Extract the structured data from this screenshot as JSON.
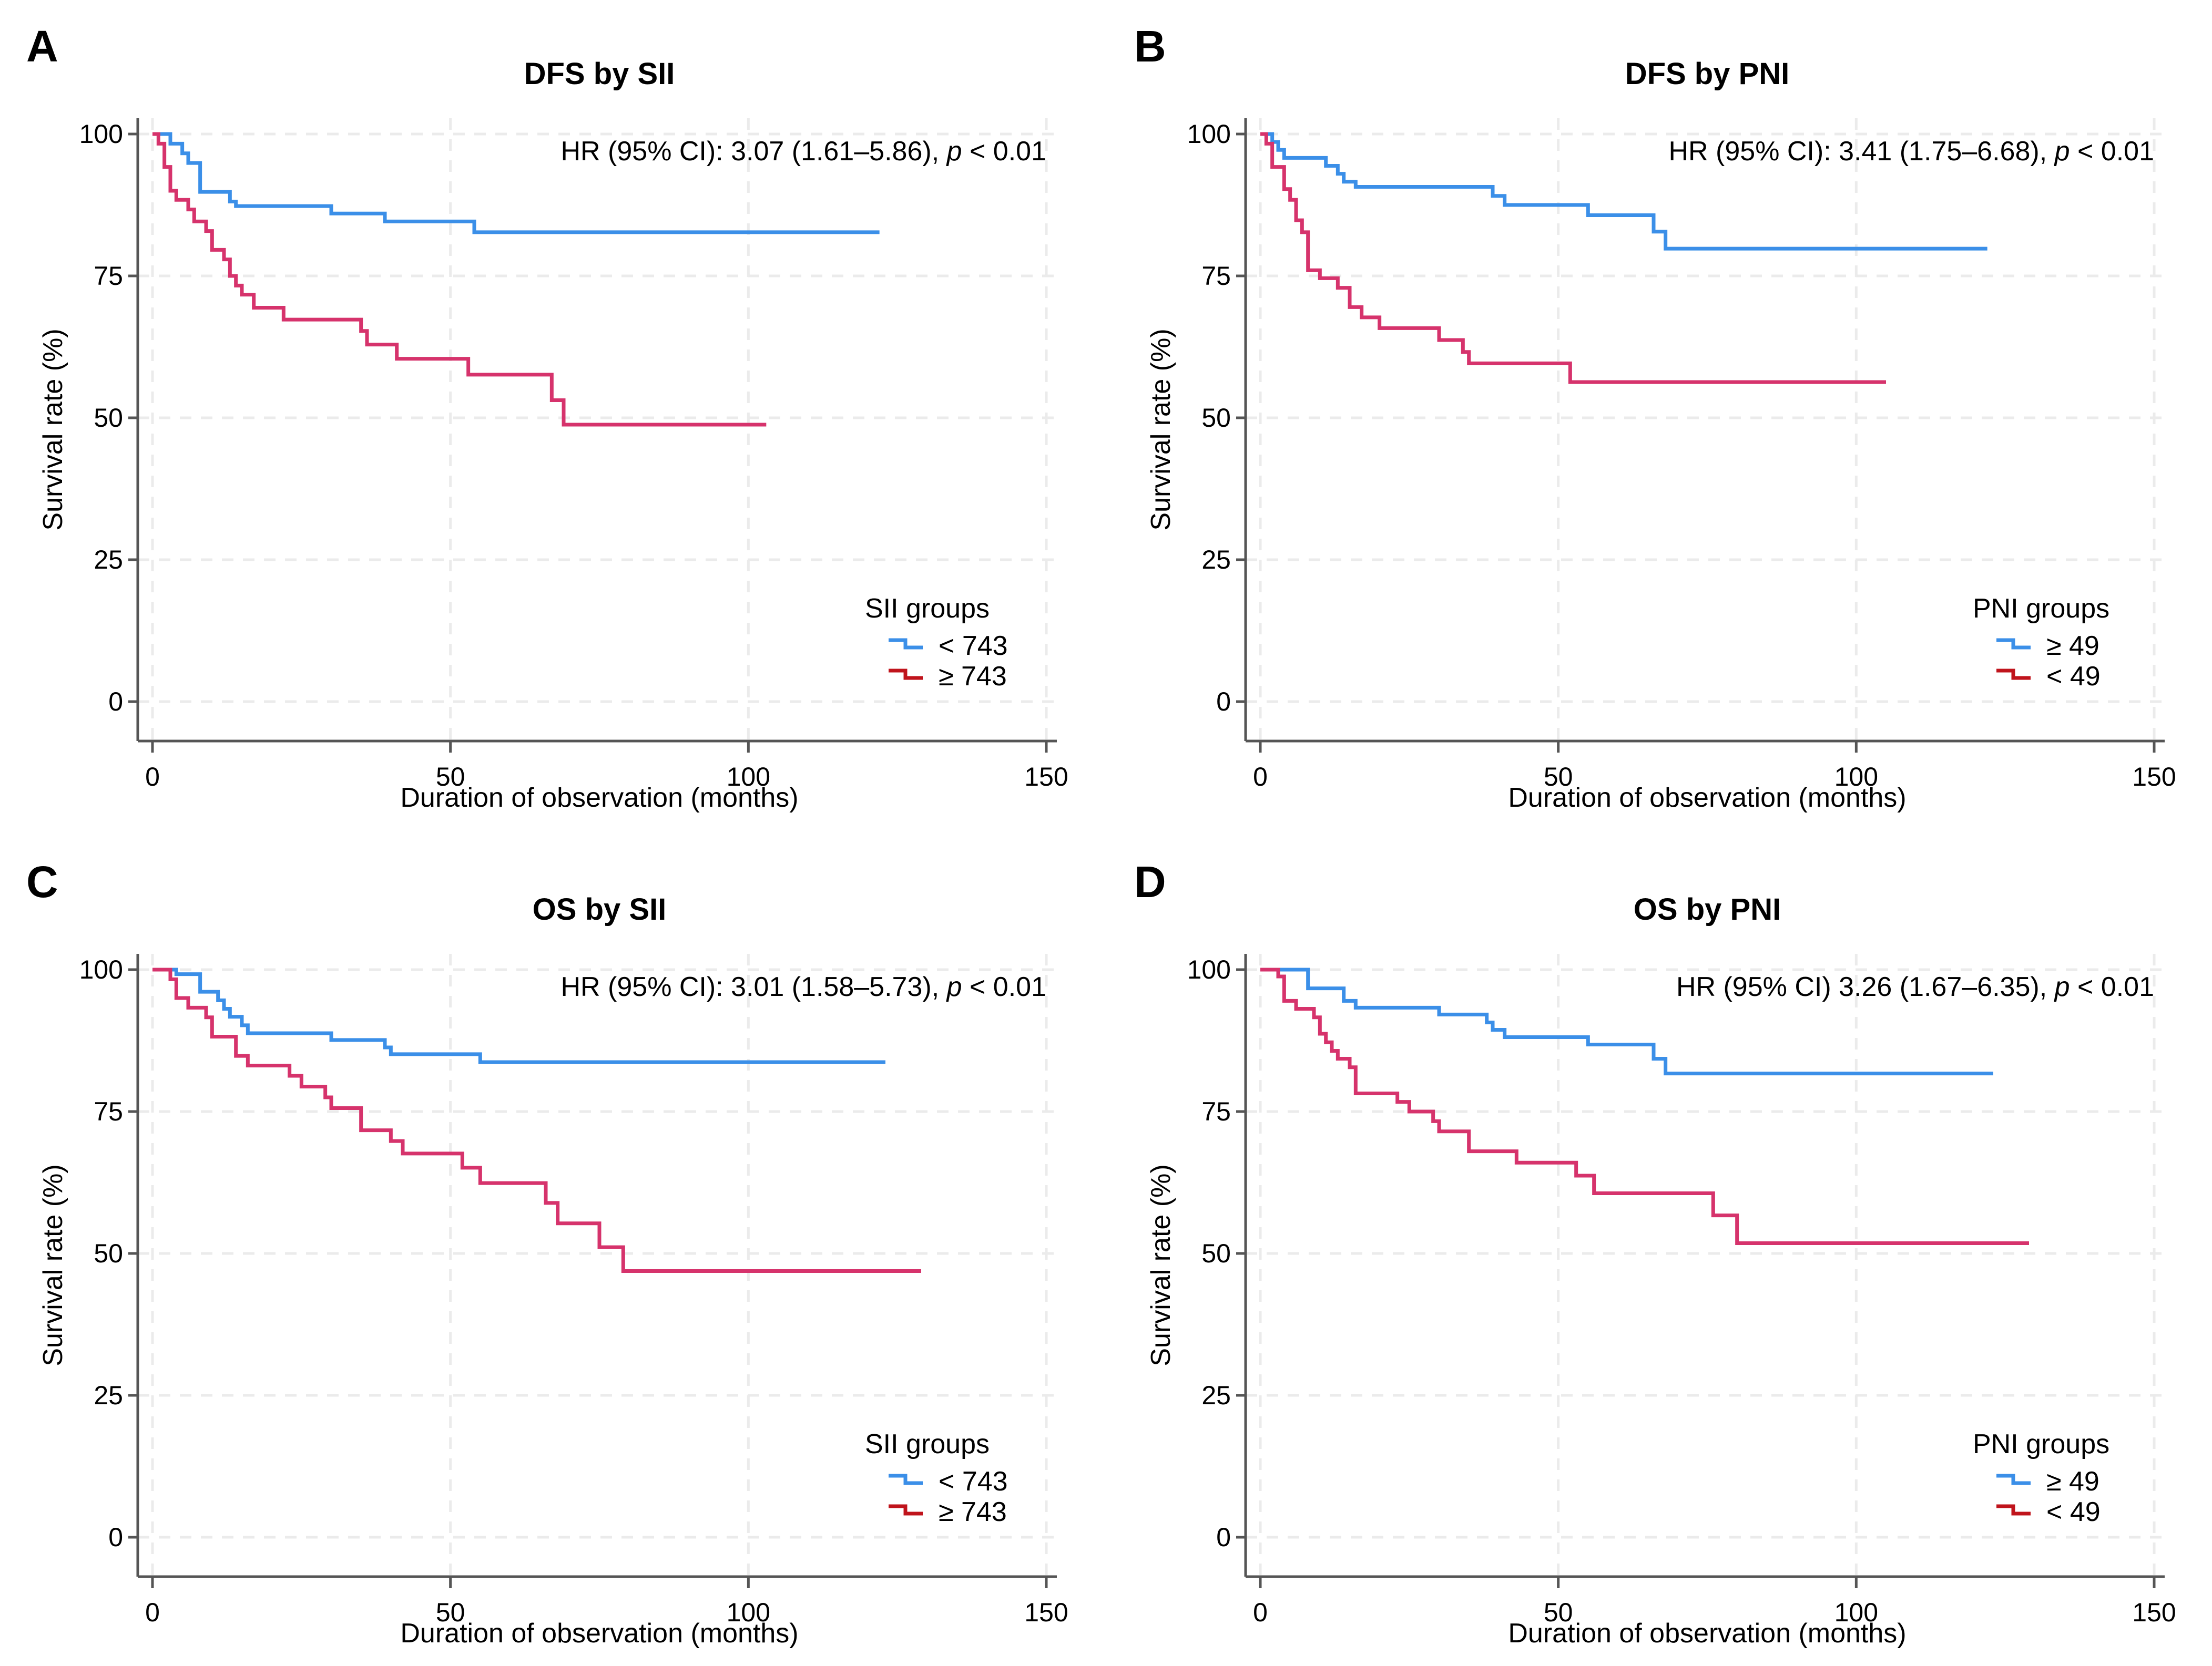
{
  "chart_data": [
    {
      "type": "line",
      "subtype": "kaplan-meier-step",
      "panel_letter": "A",
      "title": "DFS by SII",
      "xlabel": "Duration of observation (months)",
      "ylabel": "Survival rate (%)",
      "xlim": [
        0,
        150
      ],
      "ylim": [
        0,
        100
      ],
      "xticks": [
        0,
        50,
        100,
        150
      ],
      "yticks": [
        0,
        25,
        50,
        75,
        100
      ],
      "grid": true,
      "annotation": {
        "text": "HR (95% CI): 3.07 (1.61–5.86), ",
        "italic": "p",
        "text_after": " < 0.01",
        "position": "top-right"
      },
      "legend": {
        "title": "SII groups",
        "placement": "bottom-right"
      },
      "series": [
        {
          "name": "< 743",
          "color": "#3b8fe8",
          "legend_color": "#3b8fe8",
          "x": [
            0,
            2,
            3,
            5,
            6,
            8,
            13,
            14,
            30,
            39,
            54,
            122
          ],
          "y": [
            100,
            100,
            98.3,
            96.6,
            94.9,
            89.8,
            88.1,
            87.3,
            86.0,
            84.6,
            82.7,
            82.7
          ]
        },
        {
          "name": "≥ 743",
          "color": "#d6336c",
          "legend_color": "#c0141c",
          "x": [
            0,
            1,
            2,
            3,
            4,
            6,
            7,
            9,
            10,
            12,
            13,
            14,
            15,
            17,
            22,
            35,
            36,
            41,
            53,
            67,
            69,
            103
          ],
          "y": [
            100,
            98.3,
            94.2,
            90.0,
            88.4,
            86.7,
            84.6,
            82.9,
            79.6,
            77.9,
            75.0,
            73.3,
            71.7,
            69.4,
            67.3,
            65.3,
            62.9,
            60.4,
            57.6,
            53.1,
            48.8,
            48.8
          ]
        }
      ]
    },
    {
      "type": "line",
      "subtype": "kaplan-meier-step",
      "panel_letter": "B",
      "title": "DFS by PNI",
      "xlabel": "Duration of observation (months)",
      "ylabel": "Survival rate (%)",
      "xlim": [
        0,
        150
      ],
      "ylim": [
        0,
        100
      ],
      "xticks": [
        0,
        50,
        100,
        150
      ],
      "yticks": [
        0,
        25,
        50,
        75,
        100
      ],
      "grid": true,
      "annotation": {
        "text": "HR (95% CI): 3.41 (1.75–6.68), ",
        "italic": "p",
        "text_after": " < 0.01",
        "position": "top-right"
      },
      "legend": {
        "title": "PNI groups",
        "placement": "bottom-right"
      },
      "series": [
        {
          "name": "≥ 49",
          "color": "#3b8fe8",
          "legend_color": "#3b8fe8",
          "x": [
            0,
            2,
            3,
            4,
            5,
            11,
            13,
            14,
            16,
            39,
            41,
            55,
            66,
            68,
            122
          ],
          "y": [
            100,
            98.6,
            97.2,
            95.8,
            95.8,
            94.4,
            93.0,
            91.6,
            90.7,
            89.1,
            87.5,
            85.7,
            82.8,
            79.8,
            79.8
          ]
        },
        {
          "name": "< 49",
          "color": "#d6336c",
          "legend_color": "#c0141c",
          "x": [
            0,
            1,
            2,
            4,
            5,
            6,
            7,
            8,
            10,
            12,
            13,
            15,
            17,
            20,
            30,
            34,
            35,
            52,
            105
          ],
          "y": [
            100,
            98.3,
            94.2,
            90.3,
            88.4,
            84.8,
            82.7,
            76.0,
            74.6,
            74.6,
            72.9,
            69.5,
            67.7,
            65.8,
            63.7,
            61.6,
            59.6,
            56.3,
            56.3
          ]
        }
      ]
    },
    {
      "type": "line",
      "subtype": "kaplan-meier-step",
      "panel_letter": "C",
      "title": "OS by SII",
      "xlabel": "Duration of observation (months)",
      "ylabel": "Survival rate (%)",
      "xlim": [
        0,
        150
      ],
      "ylim": [
        0,
        100
      ],
      "xticks": [
        0,
        50,
        100,
        150
      ],
      "yticks": [
        0,
        25,
        50,
        75,
        100
      ],
      "grid": true,
      "annotation": {
        "text": "HR (95% CI): 3.01 (1.58–5.73), ",
        "italic": "p",
        "text_after": " < 0.01",
        "position": "top-right"
      },
      "legend": {
        "title": "SII groups",
        "placement": "bottom-right"
      },
      "series": [
        {
          "name": "< 743",
          "color": "#3b8fe8",
          "legend_color": "#3b8fe8",
          "x": [
            0,
            4,
            5,
            8,
            11,
            12,
            13,
            15,
            16,
            30,
            39,
            40,
            55,
            123
          ],
          "y": [
            100,
            99.2,
            99.2,
            96.1,
            94.6,
            93.1,
            91.7,
            90.2,
            88.8,
            87.6,
            86.3,
            85.1,
            83.7,
            83.7
          ]
        },
        {
          "name": "≥ 743",
          "color": "#d6336c",
          "legend_color": "#c0141c",
          "x": [
            0,
            3,
            4,
            6,
            9,
            10,
            11,
            14,
            16,
            23,
            25,
            29,
            30,
            35,
            40,
            42,
            52,
            55,
            66,
            68,
            75,
            79,
            129
          ],
          "y": [
            100,
            98.3,
            95.0,
            93.3,
            91.6,
            88.2,
            88.2,
            84.8,
            83.1,
            81.3,
            79.4,
            77.5,
            75.6,
            71.7,
            69.8,
            67.6,
            65.1,
            62.4,
            58.9,
            55.3,
            51.1,
            46.9,
            46.9
          ]
        }
      ]
    },
    {
      "type": "line",
      "subtype": "kaplan-meier-step",
      "panel_letter": "D",
      "title": "OS by PNI",
      "xlabel": "Duration of observation (months)",
      "ylabel": "Survival rate (%)",
      "xlim": [
        0,
        150
      ],
      "ylim": [
        0,
        100
      ],
      "xticks": [
        0,
        50,
        100,
        150
      ],
      "yticks": [
        0,
        25,
        50,
        75,
        100
      ],
      "grid": true,
      "annotation": {
        "text": "HR (95% CI) 3.26 (1.67–6.35), ",
        "italic": "p",
        "text_after": " < 0.01",
        "position": "top-right"
      },
      "legend": {
        "title": "PNI groups",
        "placement": "bottom-right"
      },
      "series": [
        {
          "name": "≥ 49",
          "color": "#3b8fe8",
          "legend_color": "#3b8fe8",
          "x": [
            0,
            7,
            8,
            14,
            16,
            30,
            38,
            39,
            41,
            55,
            66,
            68,
            123
          ],
          "y": [
            100,
            100,
            96.7,
            94.5,
            93.3,
            92.1,
            90.7,
            89.4,
            88.1,
            86.8,
            84.3,
            81.7,
            81.7
          ]
        },
        {
          "name": "< 49",
          "color": "#d6336c",
          "legend_color": "#c0141c",
          "x": [
            0,
            3,
            4,
            6,
            9,
            10,
            11,
            12,
            13,
            15,
            16,
            23,
            25,
            29,
            30,
            35,
            43,
            53,
            56,
            76,
            80,
            129
          ],
          "y": [
            100,
            98.8,
            94.5,
            93.1,
            91.6,
            88.7,
            87.2,
            85.7,
            84.3,
            82.8,
            78.2,
            76.7,
            75.0,
            73.3,
            71.5,
            68.0,
            66.0,
            63.7,
            60.6,
            56.7,
            51.8,
            51.8
          ]
        }
      ]
    }
  ]
}
